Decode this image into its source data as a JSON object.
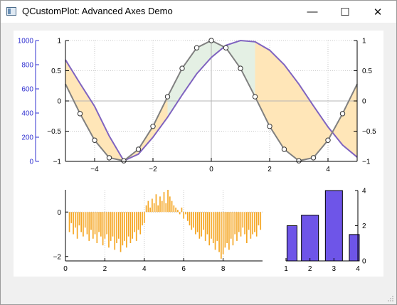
{
  "window": {
    "title": "QCustomPlot: Advanced Axes Demo",
    "minimize_label": "—",
    "maximize_label": "☐",
    "close_label": "✕"
  },
  "icons": {
    "app": "qt-window-icon",
    "minimize": "minimize-icon",
    "maximize": "maximize-icon",
    "close": "close-icon",
    "resize": "size-grip-icon"
  },
  "colors": {
    "left_axis": "#3030d0",
    "cosine_line": "#8064c0",
    "sampled_line": "#808080",
    "fill_orange": "#ffe6b8",
    "fill_green": "#e4f0e4",
    "histogram": "#f5a623",
    "bars": "#6e55e8"
  },
  "chart_data": [
    {
      "type": "line",
      "x_axis": {
        "range": [
          -5,
          5
        ],
        "ticks": [
          -4,
          -2,
          0,
          2,
          4
        ]
      },
      "y_axis_left": {
        "range": [
          0,
          1000
        ],
        "ticks": [
          0,
          200,
          400,
          600,
          800,
          1000
        ]
      },
      "y_axis_right": {
        "range": [
          -1,
          1
        ],
        "ticks": [
          -1,
          -0.5,
          0,
          0.5,
          1
        ]
      },
      "y_axis_right_inner": {
        "range": [
          -1,
          1
        ],
        "ticks": [
          -1,
          -0.5,
          0,
          0.5,
          1
        ]
      },
      "grid": true,
      "series": [
        {
          "x": [
            -5,
            -4.5,
            -4,
            -3.5,
            -3,
            -2.5,
            -2,
            -1.5,
            -1,
            -0.5,
            0,
            0.5,
            1,
            1.5,
            2,
            2.5,
            3,
            3.5,
            4,
            4.5,
            5
          ],
          "y": [
            0.28,
            -0.21,
            -0.65,
            -0.94,
            -0.99,
            -0.8,
            -0.42,
            0.07,
            0.54,
            0.88,
            1.0,
            0.88,
            0.54,
            0.07,
            -0.42,
            -0.8,
            -0.99,
            -0.94,
            -0.65,
            -0.21,
            0.28
          ]
        },
        {
          "x": [
            -5,
            -4.5,
            -4,
            -3.5,
            -3,
            -2.5,
            -2,
            -1.5,
            -1,
            -0.5,
            0,
            0.5,
            1,
            1.5,
            2,
            2.5,
            3,
            3.5,
            4,
            4.5,
            5
          ],
          "y": [
            0.68,
            0.29,
            -0.09,
            -0.58,
            -0.99,
            -0.88,
            -0.6,
            -0.27,
            0.1,
            0.45,
            0.72,
            0.92,
            1.0,
            0.98,
            0.84,
            0.6,
            0.28,
            -0.08,
            -0.43,
            -0.73,
            -0.93
          ]
        }
      ]
    },
    {
      "type": "bar",
      "x_axis": {
        "range": [
          0,
          10
        ],
        "ticks": [
          0,
          2,
          4,
          6,
          8
        ]
      },
      "y_axis": {
        "range": [
          -2.2,
          1
        ],
        "ticks": [
          -2,
          0
        ]
      },
      "grid": true,
      "x": [
        0.2,
        0.3,
        0.4,
        0.5,
        0.6,
        0.7,
        0.8,
        0.9,
        1.0,
        1.1,
        1.2,
        1.3,
        1.4,
        1.5,
        1.6,
        1.7,
        1.8,
        1.9,
        2.0,
        2.1,
        2.2,
        2.3,
        2.4,
        2.5,
        2.6,
        2.7,
        2.8,
        2.9,
        3.0,
        3.1,
        3.2,
        3.3,
        3.4,
        3.5,
        3.6,
        3.7,
        3.8,
        3.9,
        4.0,
        4.1,
        4.2,
        4.3,
        4.4,
        4.5,
        4.6,
        4.7,
        4.8,
        4.9,
        5.0,
        5.1,
        5.2,
        5.3,
        5.4,
        5.5,
        5.6,
        5.7,
        5.8,
        5.9,
        6.0,
        6.1,
        6.2,
        6.3,
        6.4,
        6.5,
        6.6,
        6.7,
        6.8,
        6.9,
        7.0,
        7.1,
        7.2,
        7.3,
        7.4,
        7.5,
        7.6,
        7.7,
        7.8,
        7.9,
        8.0,
        8.1,
        8.2,
        8.3,
        8.4,
        8.5,
        8.6,
        8.7,
        8.8,
        8.9,
        9.0,
        9.1,
        9.2,
        9.3,
        9.4,
        9.5,
        9.6,
        9.7,
        9.8,
        9.9
      ],
      "y": [
        -0.9,
        -0.5,
        -1.0,
        -0.7,
        -1.2,
        -0.6,
        -0.9,
        -1.1,
        -0.7,
        -1.0,
        -1.3,
        -0.8,
        -1.2,
        -1.0,
        -1.4,
        -0.9,
        -1.1,
        -1.5,
        -1.2,
        -1.0,
        -1.6,
        -1.3,
        -1.1,
        -1.7,
        -1.4,
        -1.2,
        -1.8,
        -1.5,
        -1.3,
        -1.6,
        -1.1,
        -1.4,
        -1.2,
        -0.9,
        -1.3,
        -0.8,
        -1.0,
        -0.6,
        -0.5,
        0.3,
        0.5,
        0.2,
        0.6,
        0.4,
        0.8,
        0.3,
        0.7,
        0.5,
        0.9,
        0.4,
        1.0,
        0.7,
        0.5,
        0.3,
        0.2,
        0.1,
        -0.1,
        0.2,
        -0.3,
        -0.1,
        -0.4,
        -0.6,
        -0.8,
        -0.7,
        -1.0,
        -0.9,
        -1.2,
        -1.1,
        -0.8,
        -1.3,
        -1.0,
        -1.5,
        -1.2,
        -1.4,
        -1.7,
        -1.3,
        -1.8,
        -2.1,
        -1.9,
        -1.6,
        -1.4,
        -1.7,
        -1.2,
        -1.5,
        -1.0,
        -1.3,
        -0.9,
        -1.1,
        -0.7,
        -1.0,
        -1.4,
        -0.8,
        -1.2,
        -1.0,
        -0.9,
        -1.1,
        -0.6,
        -0.8
      ]
    },
    {
      "type": "bar",
      "categories": [
        "1",
        "2",
        "3",
        "4"
      ],
      "x_axis": {
        "range": [
          1,
          4
        ],
        "ticks": [
          1,
          2,
          3,
          4
        ]
      },
      "y_axis": {
        "range": [
          0,
          4
        ],
        "ticks": [
          0,
          2,
          4
        ]
      },
      "x": [
        1.25,
        2.0,
        3.0,
        3.85
      ],
      "values": [
        2.0,
        2.6,
        4.0,
        1.5
      ]
    }
  ]
}
